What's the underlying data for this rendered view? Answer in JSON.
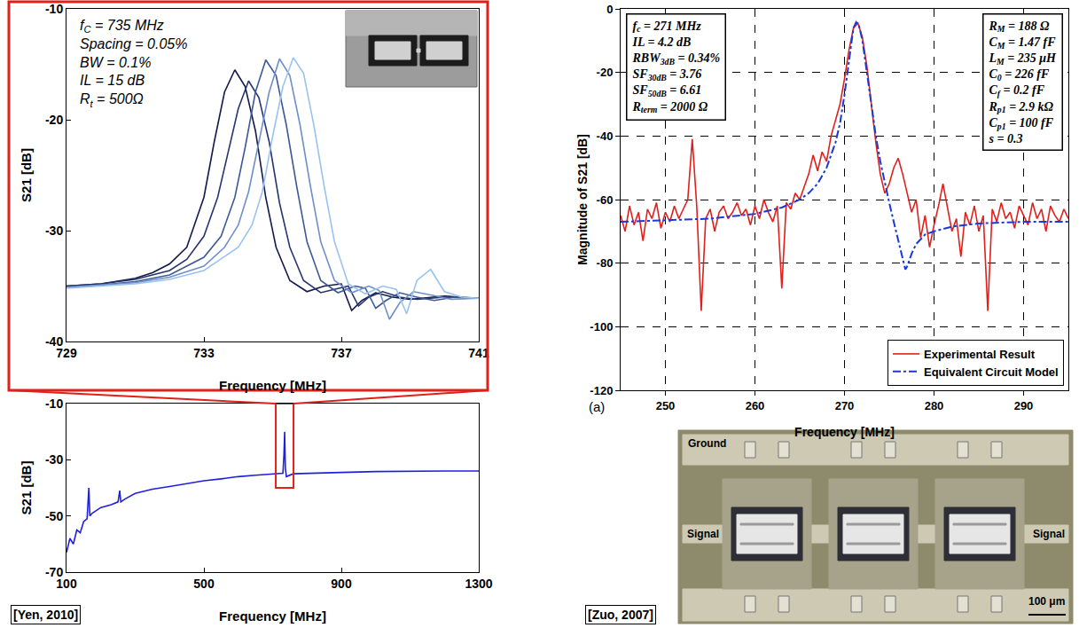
{
  "chart_data": [
    {
      "type": "line",
      "x_label": "Frequency [MHz]",
      "y_label": "S21 [dB]",
      "xlim": [
        729,
        741
      ],
      "ylim": [
        -40,
        -10
      ],
      "xticks": [
        729,
        733,
        737,
        741
      ],
      "yticks": [
        -40,
        -30,
        -20,
        -10
      ],
      "grid": false,
      "annotations": [
        [
          {
            "name": "f",
            "sub": "C",
            "text": "= 735 MHz"
          },
          {
            "name": "Spacing",
            "text": "= 0.05%"
          },
          {
            "name": "BW",
            "text": "= 0.1%"
          },
          {
            "name": "IL",
            "text": "= 15 dB"
          },
          {
            "name": "R",
            "sub": "t",
            "text": "= 500Ω"
          }
        ]
      ],
      "series": [
        {
          "color": "#131a4a",
          "line_style": "solid",
          "x": [
            729,
            730,
            731,
            731.5,
            732,
            732.5,
            733,
            733.3,
            733.6,
            733.9,
            734.2,
            734.5,
            734.8,
            735.1,
            735.5,
            736,
            736.5,
            737,
            737.3,
            737.6,
            738,
            738.5,
            739,
            740,
            741
          ],
          "values": [
            -35,
            -34.8,
            -34.3,
            -33.8,
            -33,
            -31.5,
            -27,
            -22,
            -17.5,
            -15.5,
            -17,
            -21,
            -27,
            -31.5,
            -34.5,
            -35.5,
            -35,
            -34.8,
            -37.2,
            -36.3,
            -35.6,
            -36,
            -36.2,
            -35.9,
            -36.1
          ]
        },
        {
          "color": "#27356f",
          "line_style": "solid",
          "x": [
            729,
            730,
            731,
            732,
            732.5,
            733,
            733.4,
            733.7,
            734,
            734.3,
            734.6,
            734.9,
            735.2,
            735.5,
            735.9,
            736.4,
            736.9,
            737.2,
            737.5,
            737.8,
            738.2,
            738.7,
            739.2,
            740,
            741
          ],
          "values": [
            -35,
            -34.8,
            -34.4,
            -33.6,
            -32.6,
            -30.5,
            -27,
            -23,
            -19,
            -16.5,
            -18,
            -22,
            -27.5,
            -31.5,
            -34.5,
            -35.6,
            -35.2,
            -35,
            -36.8,
            -36,
            -35.5,
            -36,
            -36.2,
            -36,
            -36.1
          ]
        },
        {
          "color": "#3d5a94",
          "line_style": "solid",
          "x": [
            729,
            730,
            731,
            732,
            733,
            733.5,
            733.9,
            734.2,
            734.5,
            734.8,
            735.1,
            735.4,
            735.7,
            736,
            736.4,
            736.9,
            737.4,
            737.7,
            738,
            738.3,
            738.7,
            739.2,
            739.7,
            740.3,
            741
          ],
          "values": [
            -35.1,
            -34.9,
            -34.6,
            -34,
            -32.4,
            -30.5,
            -27,
            -22.5,
            -17.5,
            -14.6,
            -16,
            -20.5,
            -26,
            -31,
            -34.5,
            -35.6,
            -35,
            -35.2,
            -37,
            -36.3,
            -35.6,
            -36,
            -36.3,
            -36,
            -36.1
          ]
        },
        {
          "color": "#6f8fc8",
          "line_style": "solid",
          "x": [
            729,
            730,
            731,
            732,
            733,
            733.6,
            734,
            734.3,
            734.6,
            734.9,
            735.2,
            735.5,
            735.8,
            736.1,
            736.4,
            736.8,
            737.3,
            737.8,
            738.1,
            738.4,
            738.7,
            739.1,
            739.6,
            740.2,
            741
          ],
          "values": [
            -35.1,
            -34.9,
            -34.7,
            -34.2,
            -33.2,
            -31.5,
            -29.5,
            -26.5,
            -22,
            -17.5,
            -14.5,
            -16,
            -20.5,
            -26,
            -31,
            -34.5,
            -35.6,
            -35,
            -35.4,
            -38,
            -36.5,
            -35.5,
            -35.8,
            -36.2,
            -36.1
          ]
        },
        {
          "color": "#9ac3ef",
          "line_style": "solid",
          "x": [
            729,
            730,
            731,
            732,
            733,
            734,
            734.4,
            734.7,
            735,
            735.3,
            735.6,
            735.9,
            736.2,
            736.5,
            736.8,
            737.2,
            737.7,
            738.2,
            738.6,
            738.9,
            739.2,
            739.6,
            740,
            740.5,
            741
          ],
          "values": [
            -35.2,
            -35,
            -34.8,
            -34.4,
            -33.6,
            -31.5,
            -29.5,
            -26.5,
            -21.5,
            -17,
            -14.4,
            -15.8,
            -20.5,
            -26,
            -31,
            -34.8,
            -35.7,
            -35,
            -35.3,
            -37.5,
            -34.5,
            -33.5,
            -35.5,
            -36,
            -36.1
          ]
        }
      ]
    },
    {
      "type": "line",
      "x_label": "Frequency [MHz]",
      "y_label": "S21 [dB]",
      "xlim": [
        100,
        1300
      ],
      "ylim": [
        -70,
        -10
      ],
      "xticks": [
        100,
        500,
        900,
        1300
      ],
      "yticks": [
        -70,
        -50,
        -30,
        -10
      ],
      "grid": false,
      "series": [
        {
          "color": "#1f1fe0",
          "line_style": "solid",
          "x": [
            100,
            110,
            120,
            130,
            140,
            150,
            160,
            165,
            168,
            175,
            200,
            230,
            250,
            255,
            258,
            270,
            300,
            350,
            400,
            450,
            500,
            550,
            600,
            650,
            700,
            720,
            730,
            733,
            735,
            737,
            740,
            760,
            800,
            900,
            1000,
            1100,
            1200,
            1300
          ],
          "values": [
            -63,
            -58,
            -60,
            -55,
            -56,
            -52,
            -51,
            -40,
            -50,
            -49,
            -47,
            -46,
            -45,
            -41,
            -45,
            -44,
            -42,
            -40.5,
            -39.5,
            -38.5,
            -37.5,
            -36.8,
            -36,
            -35.5,
            -35.2,
            -35,
            -34.8,
            -28,
            -20,
            -33,
            -36,
            -35,
            -34.8,
            -34.5,
            -34.2,
            -34,
            -34,
            -34
          ]
        }
      ]
    },
    {
      "type": "line",
      "x_label": "Frequency [MHz]",
      "y_label": "Magnitude of S21 [dB]",
      "xlim": [
        245,
        295
      ],
      "ylim": [
        -120,
        0
      ],
      "xticks": [
        250,
        260,
        270,
        280,
        290
      ],
      "yticks": [
        -120,
        -100,
        -80,
        -60,
        -40,
        -20,
        0
      ],
      "grid": true,
      "legend": "lower right",
      "label": "(a)",
      "annotations": [
        [
          {
            "name": "f",
            "sub": "c",
            "text": "= 271 MHz"
          },
          {
            "name": "IL",
            "text": "= 4.2 dB"
          },
          {
            "name": "RBW",
            "sub": "3dB",
            "text": "= 0.34%"
          },
          {
            "name": "SF",
            "sub": "30dB",
            "text": "= 3.76"
          },
          {
            "name": "SF",
            "sub": "50dB",
            "text": "= 6.61"
          },
          {
            "name": "R",
            "sub": "term",
            "text": "= 2000 Ω"
          }
        ],
        [
          {
            "name": "R",
            "sub": "M",
            "text": "= 188 Ω"
          },
          {
            "name": "C",
            "sub": "M",
            "text": "= 1.47 fF"
          },
          {
            "name": "L",
            "sub": "M",
            "text": "= 235 μH"
          },
          {
            "name": "C",
            "sub": "0",
            "text": "= 226 fF"
          },
          {
            "name": "C",
            "sub": "f",
            "text": "= 0.2 fF"
          },
          {
            "name": "R",
            "sub": "p1",
            "text": "= 2.9 kΩ"
          },
          {
            "name": "C",
            "sub": "p1",
            "text": "= 100 fF"
          },
          {
            "name": "s",
            "text": "= 0.3"
          }
        ]
      ],
      "series": [
        {
          "name": "Experimental Result",
          "color": "#e0201b",
          "line_style": "solid",
          "x": [
            245,
            245.5,
            246,
            246.5,
            247,
            247.5,
            248,
            248.5,
            249,
            249.5,
            250,
            250.5,
            251,
            251.5,
            252,
            252.5,
            253,
            253.5,
            254,
            254.5,
            255,
            255.5,
            256,
            256.5,
            257,
            257.5,
            258,
            258.5,
            259,
            259.5,
            260,
            260.5,
            261,
            261.5,
            262,
            262.5,
            263,
            263.5,
            264,
            264.5,
            265,
            265.5,
            266,
            266.5,
            267,
            267.5,
            268,
            268.5,
            269,
            269.5,
            270,
            270.5,
            271,
            271.5,
            272,
            272.5,
            273,
            273.5,
            274,
            274.5,
            275,
            275.5,
            276,
            276.5,
            277,
            277.5,
            278,
            278.5,
            279,
            279.5,
            280,
            280.5,
            281,
            281.5,
            282,
            282.5,
            283,
            283.5,
            284,
            284.5,
            285,
            285.5,
            286,
            286.5,
            287,
            287.5,
            288,
            288.5,
            289,
            289.5,
            290,
            290.5,
            291,
            291.5,
            292,
            292.5,
            293,
            293.5,
            294,
            294.5,
            295
          ],
          "values": [
            -65,
            -70,
            -62,
            -68,
            -64,
            -73,
            -63,
            -66,
            -61,
            -69,
            -64,
            -67,
            -62,
            -66,
            -63,
            -60,
            -41,
            -62,
            -95,
            -66,
            -63,
            -70,
            -64,
            -62,
            -66,
            -64,
            -61,
            -65,
            -63,
            -68,
            -62,
            -66,
            -60,
            -64,
            -67,
            -62,
            -88,
            -61,
            -63,
            -58,
            -60,
            -56,
            -52,
            -46,
            -51,
            -45,
            -48,
            -40,
            -35,
            -30,
            -22,
            -13,
            -6,
            -4.5,
            -9,
            -18,
            -30,
            -42,
            -52,
            -58,
            -55,
            -50,
            -47,
            -52,
            -58,
            -64,
            -60,
            -72,
            -65,
            -75,
            -68,
            -62,
            -55,
            -63,
            -70,
            -66,
            -78,
            -64,
            -68,
            -62,
            -70,
            -65,
            -95,
            -63,
            -67,
            -61,
            -66,
            -64,
            -69,
            -62,
            -65,
            -68,
            -61,
            -66,
            -63,
            -70,
            -62,
            -65,
            -67,
            -63,
            -66
          ]
        },
        {
          "name": "Equivalent Circuit Model",
          "color": "#1a3ad6",
          "line_style": "dashdot",
          "x": [
            245,
            250,
            255,
            260,
            263,
            265,
            266,
            267,
            268,
            269,
            269.5,
            270,
            270.5,
            271,
            271.3,
            271.6,
            272,
            272.5,
            273,
            273.5,
            274,
            274.5,
            275,
            275.5,
            276,
            276.5,
            276.8,
            277,
            277.5,
            278,
            279,
            280,
            282,
            285,
            290,
            295
          ],
          "values": [
            -67,
            -66.5,
            -66,
            -64.5,
            -62.5,
            -60,
            -58,
            -55,
            -50,
            -42,
            -36,
            -27,
            -16,
            -6,
            -4.2,
            -5,
            -10,
            -20,
            -30,
            -40,
            -48,
            -55,
            -61,
            -67,
            -73,
            -79,
            -82,
            -81,
            -77,
            -74,
            -71,
            -70,
            -68.5,
            -67.5,
            -67,
            -67
          ]
        }
      ]
    }
  ],
  "figure": {
    "sources": [
      "[Yen, 2010]",
      "[Zuo, 2007]"
    ],
    "micrograph": {
      "ground": "Ground",
      "signal_left": "Signal",
      "signal_right": "Signal",
      "scale_bar": "100 μm"
    }
  }
}
